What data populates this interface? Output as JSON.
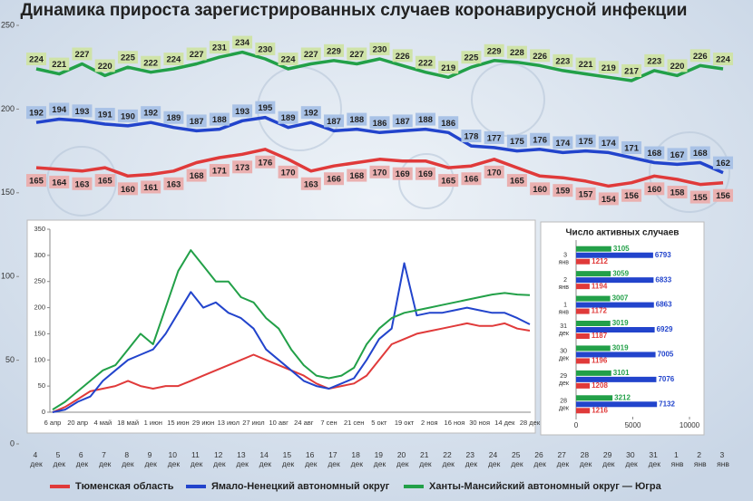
{
  "chart_data": [
    {
      "type": "line",
      "title": "Динамика прироста зарегистрированных случаев коронавирусной инфекции",
      "categories": [
        "4 дек",
        "5 дек",
        "6 дек",
        "7 дек",
        "8 дек",
        "9 дек",
        "10 дек",
        "11 дек",
        "12 дек",
        "13 дек",
        "14 дек",
        "15 дек",
        "16 дек",
        "17 дек",
        "18 дек",
        "19 дек",
        "20 дек",
        "21 дек",
        "22 дек",
        "23 дек",
        "24 дек",
        "25 дек",
        "26 дек",
        "27 дек",
        "28 дек",
        "29 дек",
        "30 дек",
        "31 дек",
        "1 янв",
        "2 янв",
        "3 янв"
      ],
      "series": [
        {
          "name": "Тюменская область",
          "color": "#e03a3a",
          "label_color": "#eab0b0",
          "values": [
            165,
            164,
            163,
            165,
            160,
            161,
            163,
            168,
            171,
            173,
            176,
            170,
            163,
            166,
            168,
            170,
            169,
            169,
            165,
            166,
            170,
            165,
            160,
            159,
            157,
            154,
            156,
            160,
            158,
            155,
            156
          ]
        },
        {
          "name": "Ямало-Ненецкий автономный округ",
          "color": "#2244cc",
          "label_color": "#a9c2e6",
          "values": [
            192,
            194,
            193,
            191,
            190,
            192,
            189,
            187,
            188,
            193,
            195,
            189,
            192,
            187,
            188,
            186,
            187,
            188,
            186,
            178,
            177,
            175,
            176,
            174,
            175,
            174,
            171,
            168,
            167,
            168,
            162
          ]
        },
        {
          "name": "Ханты-Мансийский автономный округ — Югра",
          "color": "#22a048",
          "label_color": "#cfe3a8",
          "values": [
            224,
            221,
            227,
            220,
            225,
            222,
            224,
            227,
            231,
            234,
            230,
            224,
            227,
            229,
            227,
            230,
            226,
            222,
            219,
            225,
            229,
            228,
            226,
            223,
            221,
            219,
            217,
            223,
            220,
            226,
            224
          ]
        }
      ],
      "ylim": [
        0,
        250
      ],
      "yticks": [
        0,
        50,
        100,
        150,
        200,
        250
      ],
      "grid": false,
      "data_labels": true,
      "legend": "bottom"
    },
    {
      "type": "line",
      "categories": [
        "6 апр",
        null,
        "20 апр",
        null,
        "4 май",
        null,
        "18 май",
        null,
        "1 июн",
        null,
        "15 июн",
        null,
        "29 июн",
        null,
        "13 июл",
        null,
        "27 июл",
        null,
        "10 авг",
        null,
        "24 авг",
        null,
        "7 сен",
        null,
        "21 сен",
        null,
        "5 окт",
        null,
        "19 окт",
        null,
        "2 ноя",
        null,
        "16 ноя",
        null,
        "30 ноя",
        null,
        "14 дек",
        null,
        "28 дек"
      ],
      "series": [
        {
          "color": "#e03a3a",
          "values": [
            0,
            10,
            25,
            40,
            45,
            50,
            60,
            50,
            45,
            50,
            50,
            60,
            70,
            80,
            90,
            100,
            110,
            100,
            90,
            80,
            70,
            55,
            45,
            50,
            55,
            70,
            100,
            130,
            140,
            150,
            155,
            160,
            165,
            170,
            165,
            165,
            170,
            160,
            156
          ]
        },
        {
          "color": "#2244cc",
          "values": [
            0,
            5,
            20,
            30,
            60,
            80,
            100,
            110,
            120,
            150,
            190,
            230,
            200,
            210,
            190,
            180,
            160,
            120,
            100,
            80,
            60,
            50,
            45,
            55,
            65,
            100,
            140,
            160,
            285,
            185,
            190,
            190,
            195,
            200,
            195,
            190,
            190,
            180,
            168
          ]
        },
        {
          "color": "#22a048",
          "values": [
            5,
            20,
            40,
            60,
            80,
            90,
            120,
            150,
            130,
            200,
            270,
            310,
            280,
            250,
            250,
            220,
            210,
            180,
            160,
            120,
            90,
            70,
            65,
            70,
            85,
            130,
            160,
            180,
            190,
            195,
            200,
            205,
            210,
            215,
            220,
            225,
            228,
            225,
            224
          ]
        }
      ],
      "ylim": [
        0,
        350
      ],
      "yticks": [
        0,
        50,
        100,
        150,
        200,
        250,
        300,
        350
      ],
      "grid": false,
      "data_labels": false
    },
    {
      "type": "bar",
      "orientation": "horizontal",
      "title": "Число активных случаев",
      "categories": [
        "3 янв",
        "2 янв",
        "1 янв",
        "31 дек",
        "30 дек",
        "29 дек",
        "28 дек"
      ],
      "series": [
        {
          "color": "#22a048",
          "values": [
            3105,
            3059,
            3007,
            3019,
            3019,
            3101,
            3212
          ]
        },
        {
          "color": "#2244cc",
          "values": [
            6793,
            6833,
            6863,
            6929,
            7005,
            7076,
            7132
          ]
        },
        {
          "color": "#e03a3a",
          "values": [
            1212,
            1194,
            1172,
            1187,
            1196,
            1208,
            1216
          ]
        }
      ],
      "xlim": [
        0,
        10000
      ],
      "xticks": [
        0,
        5000,
        10000
      ],
      "data_labels": true
    }
  ]
}
